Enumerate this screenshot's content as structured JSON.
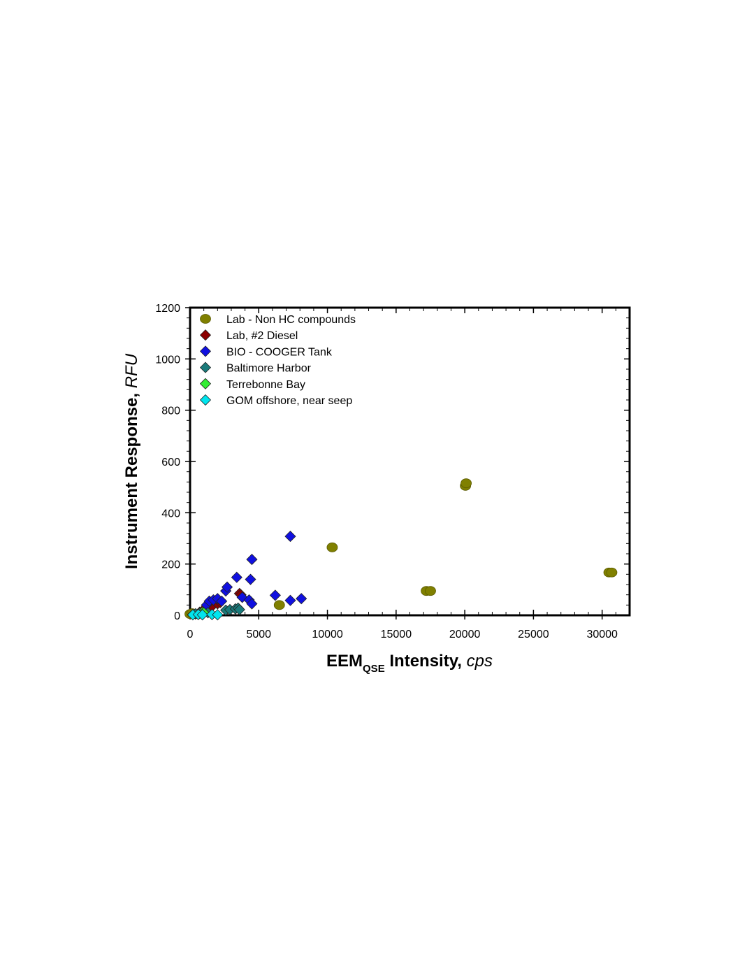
{
  "chart_data": {
    "type": "scatter",
    "x_axis": {
      "label_main": "EEM",
      "label_subscript": "QSE",
      "label_rest": " Intensity",
      "label_unit": "cps",
      "range": [
        0,
        32000
      ],
      "ticks": [
        0,
        5000,
        10000,
        15000,
        20000,
        25000,
        30000
      ],
      "minor_step": 1000
    },
    "y_axis": {
      "label_main": "Instrument Response",
      "label_unit": "RFU",
      "range": [
        0,
        1200
      ],
      "ticks": [
        0,
        200,
        400,
        600,
        800,
        1000,
        1200
      ],
      "minor_step": 40
    },
    "grid": false,
    "legend_position": "top-left",
    "series": [
      {
        "name": "Lab - Non HC compounds",
        "marker": "circle",
        "color": "#808000",
        "points": [
          [
            0,
            5
          ],
          [
            150,
            8
          ],
          [
            6500,
            40
          ],
          [
            10350,
            265
          ],
          [
            17200,
            95
          ],
          [
            17500,
            95
          ],
          [
            20050,
            505
          ],
          [
            20100,
            515
          ],
          [
            30500,
            167
          ],
          [
            30700,
            167
          ]
        ]
      },
      {
        "name": "Lab, #2 Diesel",
        "marker": "diamond",
        "color": "#8b0000",
        "points": [
          [
            400,
            5
          ],
          [
            700,
            12
          ],
          [
            900,
            18
          ],
          [
            1100,
            15
          ],
          [
            1500,
            30
          ],
          [
            2000,
            45
          ],
          [
            2200,
            50
          ],
          [
            3600,
            85
          ],
          [
            3700,
            80
          ]
        ]
      },
      {
        "name": "BIO - COOGER Tank",
        "marker": "diamond",
        "color": "#1010e0",
        "points": [
          [
            1200,
            40
          ],
          [
            1400,
            55
          ],
          [
            1700,
            60
          ],
          [
            2000,
            65
          ],
          [
            2300,
            55
          ],
          [
            2600,
            95
          ],
          [
            2700,
            110
          ],
          [
            3400,
            148
          ],
          [
            3800,
            70
          ],
          [
            4300,
            60
          ],
          [
            4400,
            140
          ],
          [
            4500,
            218
          ],
          [
            4500,
            45
          ],
          [
            6200,
            78
          ],
          [
            7300,
            308
          ],
          [
            7300,
            58
          ],
          [
            8100,
            65
          ]
        ]
      },
      {
        "name": "Baltimore Harbor",
        "marker": "diamond",
        "color": "#1a7a7a",
        "points": [
          [
            200,
            3
          ],
          [
            400,
            6
          ],
          [
            700,
            8
          ],
          [
            1300,
            10
          ],
          [
            2600,
            20
          ],
          [
            2900,
            22
          ],
          [
            3300,
            25
          ],
          [
            3500,
            28
          ],
          [
            3600,
            22
          ]
        ]
      },
      {
        "name": "Terrebonne Bay",
        "marker": "diamond",
        "color": "#33ee33",
        "points": [
          [
            900,
            12
          ],
          [
            1000,
            10
          ]
        ]
      },
      {
        "name": "GOM offshore, near seep",
        "marker": "diamond",
        "color": "#00e5ee",
        "points": [
          [
            200,
            2
          ],
          [
            600,
            3
          ],
          [
            900,
            2
          ],
          [
            1600,
            3
          ],
          [
            2000,
            2
          ]
        ]
      }
    ]
  }
}
